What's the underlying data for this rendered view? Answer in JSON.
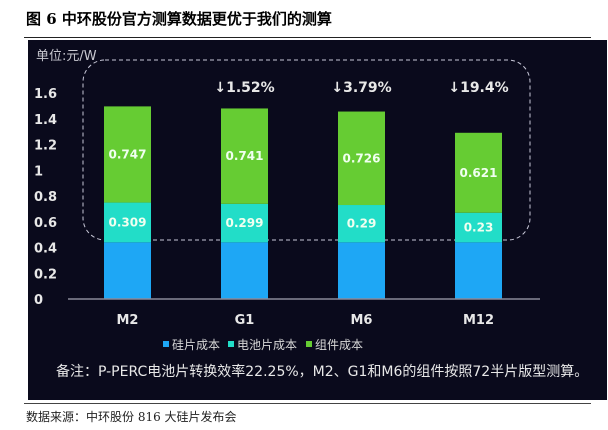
{
  "title": "图 6 中环股份官方测算数据更优于我们的测算",
  "source": "数据来源：中环股份 816 大硅片发布会",
  "chart_data": {
    "type": "bar",
    "stacked": true,
    "unit_label": "单位:元/W",
    "categories": [
      "M2",
      "G1",
      "M6",
      "M12"
    ],
    "ylim": [
      0,
      1.6
    ],
    "yticks": [
      "0",
      "0.2",
      "0.4",
      "0.6",
      "0.8",
      "1",
      "1.2",
      "1.4",
      "1.6"
    ],
    "series": [
      {
        "name": "硅片成本",
        "color": "#1ea7f5",
        "values": [
          0.44,
          0.44,
          0.44,
          0.44
        ],
        "labels": [
          "",
          "",
          "",
          ""
        ]
      },
      {
        "name": "电池片成本",
        "color": "#22ddc8",
        "values": [
          0.309,
          0.299,
          0.29,
          0.23
        ],
        "labels": [
          "0.309",
          "0.299",
          "0.29",
          "0.23"
        ]
      },
      {
        "name": "组件成本",
        "color": "#66cc33",
        "values": [
          0.747,
          0.741,
          0.726,
          0.621
        ],
        "labels": [
          "0.747",
          "0.741",
          "0.726",
          "0.621"
        ]
      }
    ],
    "annotations": [
      "",
      "↓1.52%",
      "↓3.79%",
      "↓19.4%"
    ],
    "legend": "bottom",
    "grid": false,
    "note": "备注：P-PERC电池片转换效率22.25%，M2、G1和M6的组件按照72半片版型测算。"
  }
}
